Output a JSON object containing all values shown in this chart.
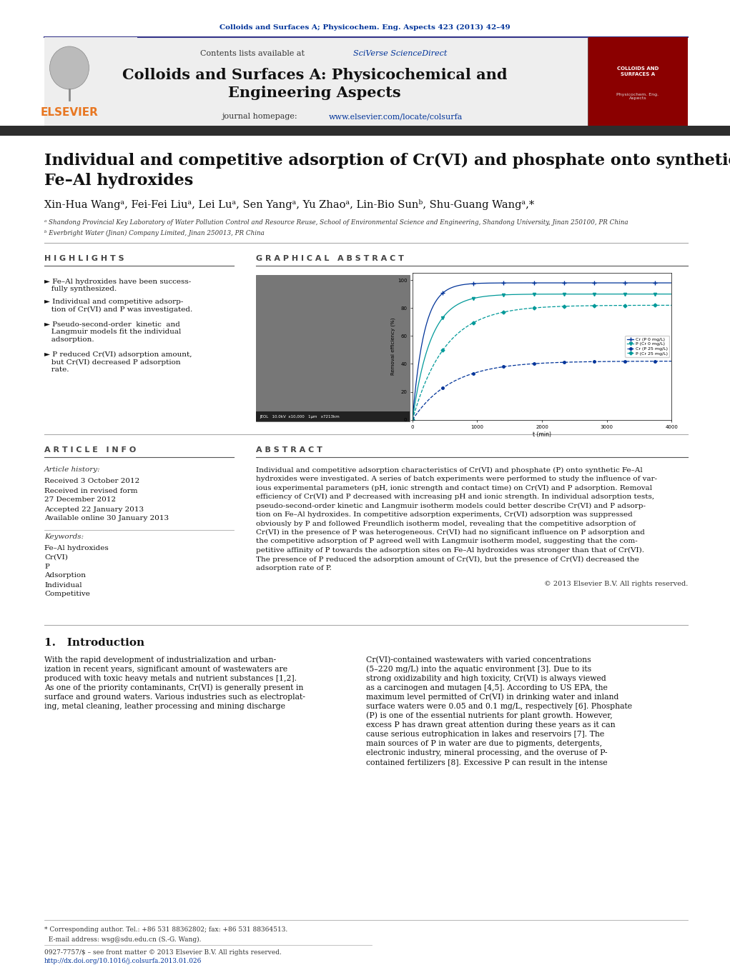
{
  "page_title_journal": "Colloids and Surfaces A; Physicochem. Eng. Aspects 423 (2013) 42–49",
  "journal_name_line1": "Colloids and Surfaces A: Physicochemical and",
  "journal_name_line2": "Engineering Aspects",
  "contents_text": "Contents lists available at SciVerse ScienceDirect",
  "journal_homepage": "journal homepage: www.elsevier.com/locate/colsurfa",
  "paper_title_line1": "Individual and competitive adsorption of Cr(VI) and phosphate onto synthetic",
  "paper_title_line2": "Fe–Al hydroxides",
  "authors": "Xin-Hua Wangᵃ, Fei-Fei Liuᵃ, Lei Luᵃ, Sen Yangᵃ, Yu Zhaoᵃ, Lin-Bio Sunᵇ, Shu-Guang Wangᵃ,*",
  "affil_a": "ᵃ Shandong Provincial Key Laboratory of Water Pollution Control and Resource Reuse, School of Environmental Science and Engineering, Shandong University, Jinan 250100, PR China",
  "affil_b": "ᵇ Everbright Water (Jinan) Company Limited, Jinan 250013, PR China",
  "highlights_title": "H I G H L I G H T S",
  "highlights": [
    "► Fe–Al hydroxides have been success-\n   fully synthesized.",
    "► Individual and competitive adsorp-\n   tion of Cr(VI) and P was investigated.",
    "► Pseudo-second-order  kinetic  and\n   Langmuir models fit the individual\n   adsorption.",
    "► P reduced Cr(VI) adsorption amount,\n   but Cr(VI) decreased P adsorption\n   rate."
  ],
  "graphical_abstract_title": "G R A P H I C A L   A B S T R A C T",
  "article_info_title": "A R T I C L E   I N F O",
  "article_history_title": "Article history:",
  "article_history": [
    "Received 3 October 2012",
    "Received in revised form",
    "27 December 2012",
    "Accepted 22 January 2013",
    "Available online 30 January 2013"
  ],
  "keywords_title": "Keywords:",
  "keywords": [
    "Fe–Al hydroxides",
    "Cr(VI)",
    "P",
    "Adsorption",
    "Individual",
    "Competitive"
  ],
  "abstract_title": "A B S T R A C T",
  "abstract_lines": [
    "Individual and competitive adsorption characteristics of Cr(VI) and phosphate (P) onto synthetic Fe–Al",
    "hydroxides were investigated. A series of batch experiments were performed to study the influence of var-",
    "ious experimental parameters (pH, ionic strength and contact time) on Cr(VI) and P adsorption. Removal",
    "efficiency of Cr(VI) and P decreased with increasing pH and ionic strength. In individual adsorption tests,",
    "pseudo-second-order kinetic and Langmuir isotherm models could better describe Cr(VI) and P adsorp-",
    "tion on Fe–Al hydroxides. In competitive adsorption experiments, Cr(VI) adsorption was suppressed",
    "obviously by P and followed Freundlich isotherm model, revealing that the competitive adsorption of",
    "Cr(VI) in the presence of P was heterogeneous. Cr(VI) had no significant influence on P adsorption and",
    "the competitive adsorption of P agreed well with Langmuir isotherm model, suggesting that the com-",
    "petitive affinity of P towards the adsorption sites on Fe–Al hydroxides was stronger than that of Cr(VI).",
    "The presence of P reduced the adsorption amount of Cr(VI), but the presence of Cr(VI) decreased the",
    "adsorption rate of P."
  ],
  "copyright_text": "© 2013 Elsevier B.V. All rights reserved.",
  "intro_section_title": "1.   Introduction",
  "intro_lines_col1": [
    "With the rapid development of industrialization and urban-",
    "ization in recent years, significant amount of wastewaters are",
    "produced with toxic heavy metals and nutrient substances [1,2].",
    "As one of the priority contaminants, Cr(VI) is generally present in",
    "surface and ground waters. Various industries such as electroplat-",
    "ing, metal cleaning, leather processing and mining discharge"
  ],
  "intro_lines_col2": [
    "Cr(VI)-contained wastewaters with varied concentrations",
    "(5–220 mg/L) into the aquatic environment [3]. Due to its",
    "strong oxidizability and high toxicity, Cr(VI) is always viewed",
    "as a carcinogen and mutagen [4,5]. According to US EPA, the",
    "maximum level permitted of Cr(VI) in drinking water and inland",
    "surface waters were 0.05 and 0.1 mg/L, respectively [6]. Phosphate",
    "(P) is one of the essential nutrients for plant growth. However,",
    "excess P has drawn great attention during these years as it can",
    "cause serious eutrophication in lakes and reservoirs [7]. The",
    "main sources of P in water are due to pigments, detergents,",
    "electronic industry, mineral processing, and the overuse of P-",
    "contained fertilizers [8]. Excessive P can result in the intense"
  ],
  "footer_corr": "* Corresponding author. Tel.: +86 531 88362802; fax: +86 531 88364513.",
  "footer_email": "  E-mail address: wsg@sdu.edu.cn (S.-G. Wang).",
  "footer_issn": "0927-7757/$ – see front matter © 2013 Elsevier B.V. All rights reserved.",
  "footer_doi": "http://dx.doi.org/10.1016/j.colsurfa.2013.01.026",
  "bg_color": "#ffffff",
  "header_bg": "#eeeeee",
  "dark_bar_color": "#2d2d2d",
  "link_color": "#003399",
  "orange_color": "#e87722",
  "graph_colors": [
    "#003399",
    "#009999",
    "#003399",
    "#009999"
  ],
  "graph_legend": [
    "Cr (P 0 mg/L)",
    "P (Cr 0 mg/L)",
    "Cr (P 25 mg/L)",
    "P (Cr 25 mg/L)"
  ]
}
